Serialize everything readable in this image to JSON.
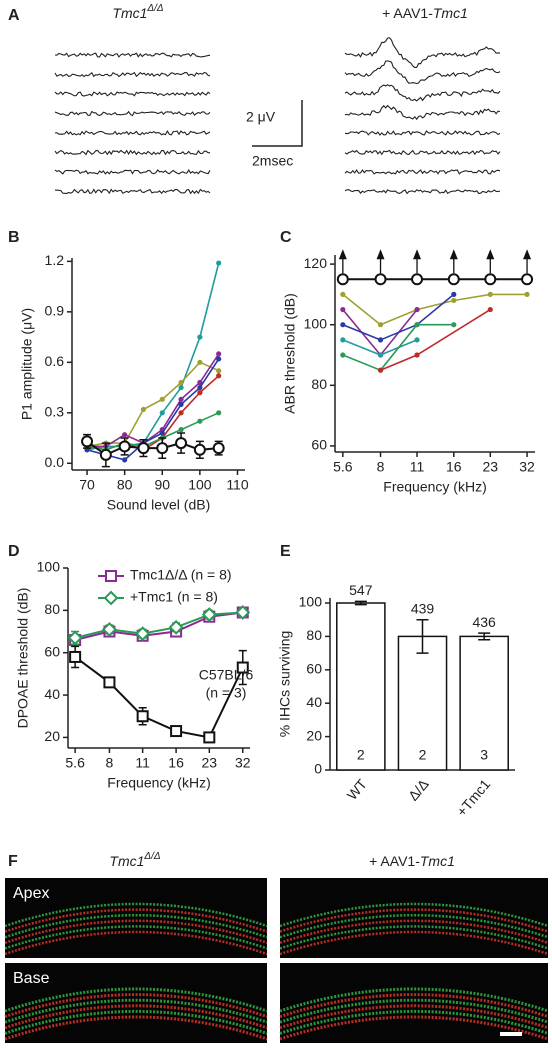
{
  "panel_a": {
    "panel_label": "A",
    "title_left": {
      "gene": "Tmc1",
      "sup": "Δ/Δ"
    },
    "title_right": {
      "prefix": "+ AAV1-",
      "gene": "Tmc1"
    },
    "scale_y": "2 μV",
    "scale_x": "2msec"
  },
  "chart_data": [
    {
      "type": "line",
      "panel_label": "B",
      "ylabel": "P1 amplitude (μV)",
      "xlabel": "Sound level (dB)",
      "xlim": [
        66,
        112
      ],
      "xticks": [
        70,
        80,
        90,
        100,
        110
      ],
      "ylim": [
        -0.04,
        1.22
      ],
      "yticks": [
        {
          "value": 0,
          "label": "0.0"
        },
        0.3,
        0.6,
        0.9,
        1.2
      ],
      "x": [
        70,
        75,
        80,
        85,
        90,
        95,
        100,
        105
      ],
      "series": [
        {
          "color": "#1f9c9c",
          "marker": "dot",
          "values": [
            0.08,
            0.1,
            0.1,
            0.12,
            0.3,
            0.45,
            0.75,
            1.19
          ]
        },
        {
          "color": "#a0a030",
          "marker": "dot",
          "values": [
            0.1,
            0.12,
            0.12,
            0.32,
            0.38,
            0.48,
            0.6,
            0.55
          ]
        },
        {
          "color": "#8a2a92",
          "marker": "dot",
          "values": [
            0.1,
            0.1,
            0.17,
            0.12,
            0.2,
            0.38,
            0.48,
            0.65
          ]
        },
        {
          "color": "#2a3aa8",
          "marker": "dot",
          "values": [
            0.08,
            0.05,
            0.02,
            0.12,
            0.18,
            0.35,
            0.45,
            0.62
          ]
        },
        {
          "color": "#c02a2a",
          "marker": "dot",
          "values": [
            0.1,
            0.08,
            0.12,
            0.08,
            0.15,
            0.3,
            0.42,
            0.52
          ]
        },
        {
          "color": "#2a9a55",
          "marker": "dot",
          "values": [
            0.1,
            0.08,
            0.12,
            0.1,
            0.15,
            0.2,
            0.25,
            0.3
          ]
        },
        {
          "color": "#111111",
          "marker": "circle",
          "values": [
            0.13,
            0.05,
            0.1,
            0.09,
            0.09,
            0.12,
            0.08,
            0.09
          ],
          "errors": [
            0.04,
            0.07,
            0.05,
            0.05,
            0.06,
            0.06,
            0.05,
            0.04
          ]
        }
      ]
    },
    {
      "type": "line",
      "panel_label": "C",
      "ylabel": "ABR threshold (dB)",
      "xlabel": "Frequency (kHz)",
      "xscale": "log",
      "xlim": [
        5.2,
        34.5
      ],
      "xticks": [
        5.6,
        8,
        {
          "value": 11.3,
          "label": "11"
        },
        16,
        {
          "value": 22.6,
          "label": "23"
        },
        32
      ],
      "ylim": [
        58,
        123
      ],
      "yticks": [
        60,
        80,
        100,
        120
      ],
      "series": [
        {
          "color": "#a0a030",
          "marker": "dot",
          "x": [
            5.6,
            8,
            11.3,
            16,
            22.6,
            32
          ],
          "values": [
            110,
            100,
            105,
            108,
            110,
            110
          ]
        },
        {
          "color": "#8a2a92",
          "marker": "dot",
          "x": [
            5.6,
            8,
            11.3
          ],
          "values": [
            105,
            90,
            105
          ]
        },
        {
          "color": "#2a3aa8",
          "marker": "dot",
          "x": [
            5.6,
            8,
            11.3,
            16
          ],
          "values": [
            100,
            95,
            100,
            110
          ]
        },
        {
          "color": "#1f9c9c",
          "marker": "dot",
          "x": [
            5.6,
            8,
            11.3
          ],
          "values": [
            95,
            90,
            95
          ]
        },
        {
          "color": "#2a9a55",
          "marker": "dot",
          "x": [
            5.6,
            8,
            11.3,
            16
          ],
          "values": [
            90,
            85,
            100,
            100
          ]
        },
        {
          "color": "#c02a2a",
          "marker": "dot",
          "x": [
            8,
            11.3,
            22.6
          ],
          "values": [
            85,
            90,
            105
          ]
        },
        {
          "color": "#111111",
          "marker": "circle",
          "no_response": true,
          "x": [
            5.6,
            8,
            11.3,
            16,
            22.6,
            32
          ],
          "values": [
            115,
            115,
            115,
            115,
            115,
            115
          ]
        }
      ]
    },
    {
      "type": "line",
      "panel_label": "D",
      "ylabel": "DPOAE threshold (dB)",
      "xlabel": "Frequency (kHz)",
      "xscale": "log",
      "xlim": [
        5.2,
        34.5
      ],
      "xticks": [
        5.6,
        8,
        {
          "value": 11.3,
          "label": "11"
        },
        16,
        {
          "value": 22.6,
          "label": "23"
        },
        32
      ],
      "ylim": [
        15,
        100
      ],
      "yticks": [
        20,
        40,
        60,
        80,
        100
      ],
      "legend": "upper left",
      "x": [
        5.6,
        8,
        11.3,
        16,
        22.6,
        32
      ],
      "series": [
        {
          "name": "Tmc1Δ/Δ (n = 8)",
          "color": "#8a2a92",
          "marker": "square",
          "values": [
            66,
            70,
            68,
            70,
            77,
            79
          ],
          "errors": [
            2,
            2,
            2,
            2,
            2,
            2
          ]
        },
        {
          "name": "+Tmc1 (n = 8)",
          "color": "#2a9a55",
          "marker": "diamond",
          "values": [
            67,
            71,
            69,
            72,
            78,
            79
          ],
          "errors": [
            3,
            2,
            2,
            2,
            2,
            2
          ]
        },
        {
          "color": "#111111",
          "marker": "square",
          "annotation": [
            "C57BL/6",
            "(n = 3)"
          ],
          "values": [
            58,
            46,
            30,
            23,
            20,
            53
          ],
          "errors": [
            5,
            2,
            4,
            2,
            1,
            8
          ]
        }
      ]
    },
    {
      "type": "bar",
      "panel_label": "E",
      "ylabel": "% IHCs surviving",
      "categories": [
        "WT",
        "Δ/Δ",
        "+Tmc1"
      ],
      "values": [
        100,
        80,
        80
      ],
      "errors": [
        1,
        10,
        2
      ],
      "counts_above": [
        547,
        439,
        436
      ],
      "counts_inside": [
        2,
        2,
        3
      ],
      "ylim": [
        0,
        103
      ],
      "yticks": [
        0,
        20,
        40,
        60,
        80,
        100
      ]
    }
  ],
  "panel_f": {
    "panel_label": "F",
    "title_left": {
      "gene": "Tmc1",
      "sup": "Δ/Δ"
    },
    "title_right": {
      "prefix": "+ AAV1-",
      "gene": "Tmc1"
    },
    "row_labels": [
      "Apex",
      "Base"
    ]
  }
}
